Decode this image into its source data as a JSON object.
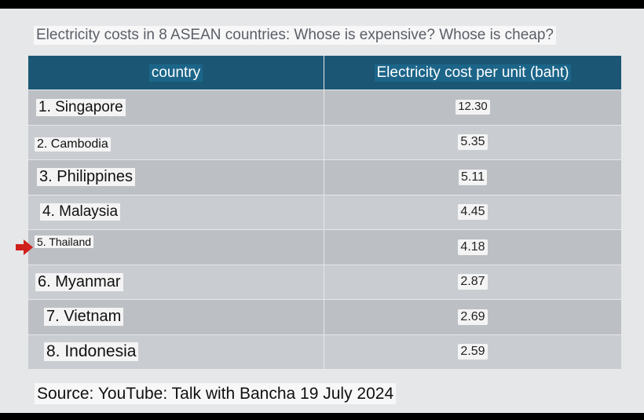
{
  "title": "Electricity costs in 8 ASEAN countries: Whose is expensive? Whose is cheap?",
  "table": {
    "headers": [
      "country",
      "Electricity cost per unit (baht)"
    ],
    "rows": [
      {
        "country": "1. Singapore",
        "cost": "12.30"
      },
      {
        "country": "2. Cambodia",
        "cost": "5.35"
      },
      {
        "country": "3. Philippines",
        "cost": "5.11"
      },
      {
        "country": "4. Malaysia",
        "cost": "4.45"
      },
      {
        "country": "5. Thailand",
        "cost": "4.18"
      },
      {
        "country": "6. Myanmar",
        "cost": "2.87"
      },
      {
        "country": "7. Vietnam",
        "cost": "2.69"
      },
      {
        "country": "8. Indonesia",
        "cost": "2.59"
      }
    ]
  },
  "highlight": {
    "icon": "right-arrow-icon",
    "color": "#d0201c",
    "row": "5. Thailand"
  },
  "colors": {
    "header": "#1b5775",
    "background": "#e6e7e9"
  },
  "source": "Source: YouTube: Talk with Bancha 19 July 2024"
}
